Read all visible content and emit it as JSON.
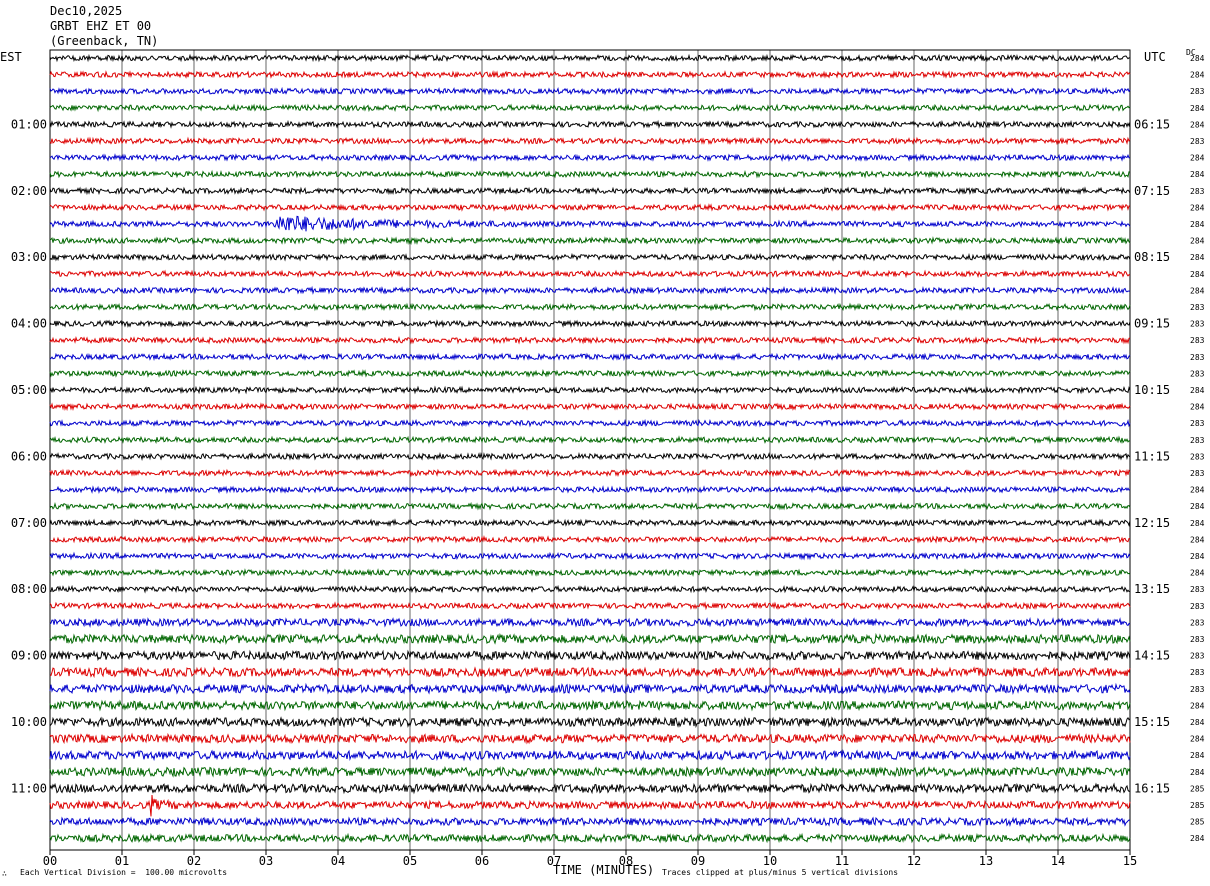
{
  "header": {
    "date": "Dec10,2025",
    "station": "GRBT EHZ ET 00",
    "location": "(Greenback, TN)"
  },
  "left_tz": "EST",
  "right_tz": "UTC",
  "dc_label": "DC",
  "footer": {
    "scale": "Each Vertical Division =  100.00 microvolts",
    "clip": "Traces clipped at plus/minus 5 vertical divisions",
    "corner": "∴"
  },
  "chart_data": {
    "type": "line",
    "title": "",
    "xlabel": "TIME (MINUTES)",
    "ylabel": "",
    "xlim": [
      0,
      15
    ],
    "x_ticks": [
      "00",
      "01",
      "02",
      "03",
      "04",
      "05",
      "06",
      "07",
      "08",
      "09",
      "10",
      "11",
      "12",
      "13",
      "14",
      "15"
    ],
    "rows_per_hour": 4,
    "trace_count": 48,
    "trace_colors": [
      "#000000",
      "#dd0000",
      "#0000cc",
      "#006600"
    ],
    "left_hour_labels": [
      "01:00",
      "02:00",
      "03:00",
      "04:00",
      "05:00",
      "06:00",
      "07:00",
      "08:00",
      "09:00",
      "10:00",
      "11:00"
    ],
    "right_hour_labels": [
      "06:15",
      "07:15",
      "08:15",
      "09:15",
      "10:15",
      "11:15",
      "12:15",
      "13:15",
      "14:15",
      "15:15",
      "16:15"
    ],
    "dc_offsets": [
      "284",
      "284",
      "283",
      "284",
      "284",
      "283",
      "284",
      "284",
      "283",
      "284",
      "284",
      "284",
      "284",
      "284",
      "284",
      "283",
      "283",
      "283",
      "283",
      "283",
      "284",
      "284",
      "283",
      "283",
      "283",
      "283",
      "284",
      "284",
      "284",
      "284",
      "284",
      "284",
      "283",
      "283",
      "283",
      "283",
      "283",
      "283",
      "283",
      "284",
      "284",
      "284",
      "284",
      "284",
      "285",
      "285",
      "285",
      "284"
    ],
    "events": [
      {
        "trace": 10,
        "start_min": 3.12,
        "end_min": 6.5,
        "amplitude": 5,
        "label": ""
      },
      {
        "trace": 45,
        "start_min": 1.4,
        "end_min": 2.0,
        "amplitude": 2,
        "label": ""
      }
    ],
    "grid": true
  }
}
